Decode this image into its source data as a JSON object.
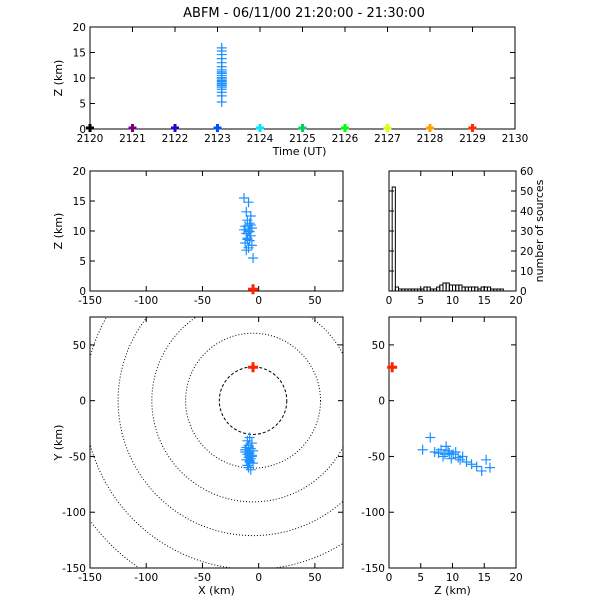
{
  "title": "ABFM - 06/11/00 21:20:00 - 21:30:00",
  "colors": {
    "source": "#1e90ff",
    "station": "#ff2200",
    "time_markers": [
      "#000000",
      "#7a0080",
      "#2a00cc",
      "#0050ff",
      "#00e5ff",
      "#00d060",
      "#00ff00",
      "#e0ff00",
      "#ffa000",
      "#ff2a00"
    ]
  },
  "chart_data": [
    {
      "panel": "time-height",
      "type": "scatter",
      "xlabel": "Time (UT)",
      "ylabel": "Z (km)",
      "xlim": [
        2120,
        2130
      ],
      "ylim": [
        0,
        20
      ],
      "xticks": [
        "2120",
        "2121",
        "2122",
        "2123",
        "2124",
        "2125",
        "2126",
        "2127",
        "2128",
        "2129",
        "2130"
      ],
      "yticks": [
        "0",
        "5",
        "10",
        "15",
        "20"
      ],
      "time_markers": [
        2120,
        2121,
        2122,
        2123,
        2124,
        2125,
        2126,
        2127,
        2128,
        2129
      ],
      "points_x": [
        2123.1,
        2123.1,
        2123.1,
        2123.1,
        2123.1,
        2123.1,
        2123.1,
        2123.1,
        2123.1,
        2123.1,
        2123.1,
        2123.1,
        2123.1,
        2123.1,
        2123.1,
        2123.1,
        2123.1,
        2123.1,
        2123.1,
        2123.1,
        2123.1,
        2123.1
      ],
      "points_y": [
        5.3,
        6.5,
        7.2,
        7.8,
        8.2,
        8.5,
        8.8,
        9.0,
        9.3,
        9.5,
        9.8,
        10.1,
        10.5,
        10.9,
        11.2,
        11.6,
        12.2,
        13.0,
        13.8,
        14.6,
        15.3,
        15.9
      ]
    },
    {
      "panel": "x-z",
      "type": "scatter",
      "ylabel": "Z (km)",
      "xlim": [
        -150,
        75
      ],
      "ylim": [
        0,
        20
      ],
      "xticks": [
        "-150",
        "-100",
        "-50",
        "0",
        "50"
      ],
      "yticks": [
        "0",
        "5",
        "10",
        "15",
        "20"
      ],
      "station": {
        "x": -5,
        "z": 0.3
      },
      "points_x": [
        -13,
        -9,
        -11,
        -7,
        -10,
        -8,
        -12,
        -6,
        -9,
        -11,
        -7,
        -10,
        -8,
        -12,
        -6,
        -9,
        -11,
        -5,
        -8,
        -10,
        -13,
        -7
      ],
      "points_z": [
        15.5,
        14.8,
        13.2,
        12.5,
        11.8,
        11.3,
        10.8,
        10.5,
        10.0,
        9.6,
        9.2,
        8.8,
        8.4,
        8.0,
        7.6,
        7.2,
        6.8,
        5.5,
        9.9,
        8.6,
        10.2,
        11.0
      ]
    },
    {
      "panel": "histogram",
      "type": "bar",
      "ylabel": "number of sources",
      "xlim": [
        0,
        20
      ],
      "ylim": [
        0,
        60
      ],
      "xticks": [
        "0",
        "5",
        "10",
        "15",
        "20"
      ],
      "yticks": [
        "0",
        "10",
        "20",
        "30",
        "40",
        "50",
        "60"
      ],
      "bin_width": 0.5,
      "values": [
        0,
        52,
        2,
        1,
        1,
        1,
        1,
        1,
        1,
        1,
        1,
        2,
        2,
        1,
        1,
        2,
        3,
        4,
        4,
        3,
        3,
        3,
        3,
        2,
        2,
        2,
        2,
        2,
        1,
        2,
        2,
        2,
        1,
        1,
        1,
        1,
        0,
        0,
        0,
        0
      ]
    },
    {
      "panel": "plan-view",
      "type": "scatter",
      "xlabel": "X (km)",
      "ylabel": "Y (km)",
      "xlim": [
        -150,
        75
      ],
      "ylim": [
        -150,
        75
      ],
      "xticks": [
        "-150",
        "-100",
        "-50",
        "0",
        "50"
      ],
      "yticks": [
        "-150",
        "-100",
        "-50",
        "0",
        "50"
      ],
      "range_rings_km": [
        30,
        60,
        90,
        120,
        150,
        180
      ],
      "ring_center": [
        -5,
        0
      ],
      "station": {
        "x": -5,
        "y": 30
      },
      "points_x": [
        -8,
        -10,
        -6,
        -9,
        -11,
        -7,
        -5,
        -12,
        -8,
        -10,
        -6,
        -9,
        -7,
        -11,
        -8,
        -5,
        -10,
        -9,
        -7,
        -12,
        -6,
        -8
      ],
      "points_y": [
        -33,
        -36,
        -38,
        -40,
        -42,
        -43,
        -45,
        -46,
        -47,
        -48,
        -50,
        -51,
        -52,
        -53,
        -55,
        -56,
        -58,
        -60,
        -62,
        -44,
        -49,
        -54
      ]
    },
    {
      "panel": "z-y",
      "type": "scatter",
      "xlabel": "Z (km)",
      "xlim": [
        0,
        20
      ],
      "ylim": [
        -150,
        75
      ],
      "xticks": [
        "0",
        "5",
        "10",
        "15",
        "20"
      ],
      "yticks": [
        "-150",
        "-100",
        "-50",
        "0",
        "50"
      ],
      "station": {
        "z": 0.5,
        "y": 30
      },
      "points_z": [
        5.3,
        6.5,
        7.2,
        7.8,
        8.2,
        8.5,
        8.8,
        9.0,
        9.3,
        9.5,
        9.8,
        10.1,
        10.5,
        10.9,
        11.2,
        11.6,
        12.2,
        13.0,
        13.8,
        14.6,
        15.3,
        15.9
      ],
      "points_y": [
        -44,
        -33,
        -46,
        -47,
        -44,
        -50,
        -48,
        -41,
        -45,
        -47,
        -52,
        -48,
        -46,
        -51,
        -53,
        -50,
        -55,
        -57,
        -59,
        -63,
        -53,
        -60
      ]
    }
  ]
}
